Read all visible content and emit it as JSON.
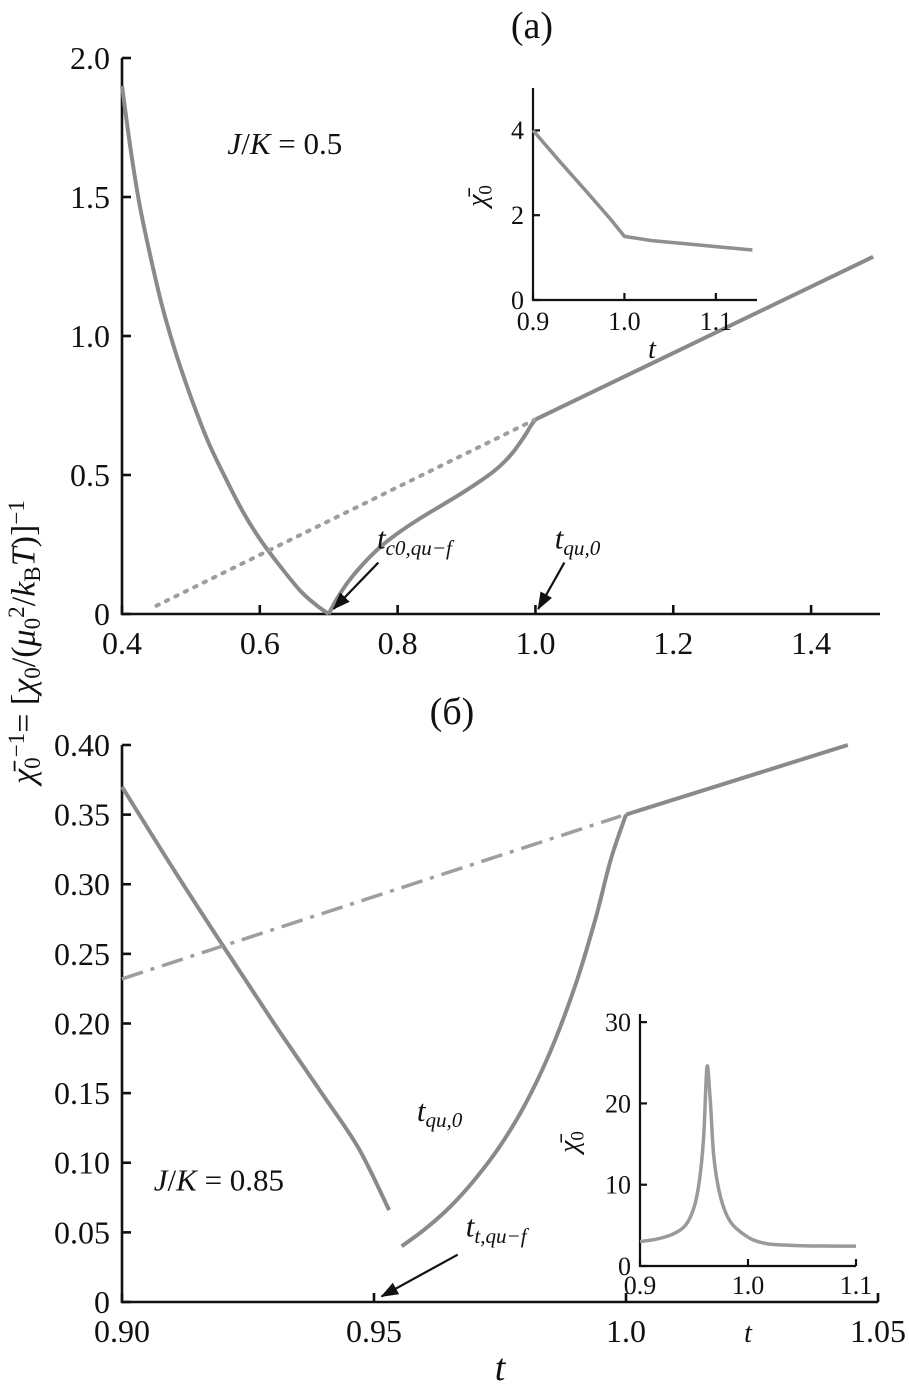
{
  "figure": {
    "shared_xlabel": "t",
    "shared_ylabel_parts": [
      [
        "i",
        "χ̄"
      ],
      [
        "sub",
        "0"
      ],
      [
        "sup",
        "−1"
      ],
      [
        "n",
        "= ["
      ],
      [
        "i",
        "χ"
      ],
      [
        "sub",
        "0"
      ],
      [
        "n",
        "/("
      ],
      [
        "i",
        "μ"
      ],
      [
        "sub",
        "0"
      ],
      [
        "sup",
        "2"
      ],
      [
        "n",
        "/"
      ],
      [
        "i",
        "k"
      ],
      [
        "sub",
        "B"
      ],
      [
        "i",
        "T"
      ],
      [
        "n",
        ")]"
      ],
      [
        "sup",
        "−1"
      ]
    ],
    "text_color": "#111111",
    "background": "#ffffff"
  },
  "chart_data": [
    {
      "type": "line",
      "panel_label": "(a)",
      "xlim": [
        0.4,
        1.5
      ],
      "ylim": [
        0,
        2.0
      ],
      "xtick_values": [
        0.4,
        0.6,
        0.8,
        1.0,
        1.2,
        1.4
      ],
      "xtick_labels": [
        "0.4",
        "0.6",
        "0.8",
        "1.0",
        "1.2",
        "1.4"
      ],
      "ytick_values": [
        0,
        0.5,
        1.0,
        1.5,
        2.0
      ],
      "ytick_labels": [
        "0",
        "0.5",
        "1.0",
        "1.5",
        "2.0"
      ],
      "grid": false,
      "series": [
        {
          "name": "ferro-descending-branch",
          "style": "solid",
          "color": "#8a8a8a",
          "width": 4,
          "points": [
            [
              0.4,
              1.9
            ],
            [
              0.412,
              1.68
            ],
            [
              0.425,
              1.48
            ],
            [
              0.44,
              1.3
            ],
            [
              0.458,
              1.11
            ],
            [
              0.478,
              0.94
            ],
            [
              0.5,
              0.78
            ],
            [
              0.525,
              0.62
            ],
            [
              0.55,
              0.49
            ],
            [
              0.575,
              0.37
            ],
            [
              0.6,
              0.27
            ],
            [
              0.63,
              0.17
            ],
            [
              0.66,
              0.08
            ],
            [
              0.683,
              0.03
            ],
            [
              0.7,
              0.0
            ]
          ]
        },
        {
          "name": "quasi-recovery-branch",
          "style": "solid",
          "color": "#8a8a8a",
          "width": 4,
          "points": [
            [
              0.7,
              0.0
            ],
            [
              0.712,
              0.055
            ],
            [
              0.728,
              0.115
            ],
            [
              0.748,
              0.175
            ],
            [
              0.772,
              0.235
            ],
            [
              0.8,
              0.29
            ],
            [
              0.83,
              0.34
            ],
            [
              0.86,
              0.385
            ],
            [
              0.89,
              0.43
            ],
            [
              0.915,
              0.47
            ],
            [
              0.938,
              0.51
            ],
            [
              0.956,
              0.55
            ],
            [
              0.97,
              0.59
            ],
            [
              0.98,
              0.625
            ],
            [
              0.988,
              0.655
            ],
            [
              0.994,
              0.68
            ],
            [
              1.0,
              0.7
            ]
          ]
        },
        {
          "name": "para-linear-branch",
          "style": "solid",
          "color": "#8a8a8a",
          "width": 4,
          "smooth": false,
          "points": [
            [
              1.0,
              0.7
            ],
            [
              1.49,
              1.285
            ]
          ]
        },
        {
          "name": "extrapolated-dotted-line",
          "style": "dotted",
          "color": "#9e9e9e",
          "width": 4,
          "smooth": false,
          "points": [
            [
              0.45,
              0.03
            ],
            [
              0.998,
              0.698
            ]
          ]
        }
      ],
      "annotations": [
        {
          "name": "annotation-t-c0-qu-f",
          "parts": [
            [
              "i",
              "t"
            ],
            [
              "subi",
              "c0,qu−f"
            ]
          ],
          "text_at": [
            0.77,
            0.235
          ],
          "anchor": "start",
          "arrow_from": [
            0.772,
            0.185
          ],
          "arrow_to": [
            0.707,
            0.018
          ]
        },
        {
          "name": "annotation-t-qu-0",
          "parts": [
            [
              "i",
              "t"
            ],
            [
              "subi",
              "qu,0"
            ]
          ],
          "text_at": [
            1.028,
            0.235
          ],
          "anchor": "start",
          "arrow_from": [
            1.042,
            0.185
          ],
          "arrow_to": [
            1.004,
            0.018
          ]
        },
        {
          "name": "parameter-label",
          "parts": [
            [
              "i",
              "J"
            ],
            [
              "n",
              "/"
            ],
            [
              "i",
              "K"
            ],
            [
              "n",
              " = 0.5"
            ]
          ],
          "text_at": [
            0.553,
            1.655
          ],
          "anchor": "start"
        }
      ],
      "inset": {
        "xlim": [
          0.9,
          1.145
        ],
        "ylim": [
          0,
          5
        ],
        "xtick_values": [
          0.9,
          1.0,
          1.1
        ],
        "xtick_labels": [
          "0.9",
          "1.0",
          "1.1"
        ],
        "ytick_values": [
          0,
          2,
          4
        ],
        "ytick_labels": [
          "0",
          "2",
          "4"
        ],
        "xlabel": "t",
        "ylabel_parts": [
          [
            "i",
            "χ̄"
          ],
          [
            "sub",
            "0"
          ]
        ],
        "series": [
          {
            "name": "inset-susceptibility-curve",
            "style": "solid",
            "color": "#8f8f8f",
            "width": 3.5,
            "smooth": false,
            "points": [
              [
                0.9,
                4.0
              ],
              [
                0.93,
                3.25
              ],
              [
                0.96,
                2.52
              ],
              [
                0.985,
                1.9
              ],
              [
                1.0,
                1.5
              ],
              [
                1.03,
                1.4
              ],
              [
                1.07,
                1.32
              ],
              [
                1.1,
                1.26
              ],
              [
                1.14,
                1.18
              ]
            ]
          }
        ]
      }
    },
    {
      "type": "line",
      "panel_label": "(б)",
      "xlim": [
        0.9,
        1.05
      ],
      "ylim": [
        0,
        0.4
      ],
      "xtick_values": [
        0.9,
        0.95,
        1.0,
        1.05
      ],
      "xtick_labels": [
        "0.90",
        "0.95",
        "1.0",
        "1.05"
      ],
      "ytick_values": [
        0,
        0.05,
        0.1,
        0.15,
        0.2,
        0.25,
        0.3,
        0.35,
        0.4
      ],
      "ytick_labels": [
        "0",
        "0.05",
        "0.10",
        "0.15",
        "0.20",
        "0.25",
        "0.30",
        "0.35",
        "0.40"
      ],
      "grid": false,
      "series": [
        {
          "name": "ferro-descending-branch",
          "style": "solid",
          "color": "#8a8a8a",
          "width": 4,
          "points": [
            [
              0.9,
              0.37
            ],
            [
              0.91,
              0.312
            ],
            [
              0.92,
              0.256
            ],
            [
              0.93,
              0.201
            ],
            [
              0.94,
              0.148
            ],
            [
              0.947,
              0.11
            ],
            [
              0.953,
              0.066
            ]
          ]
        },
        {
          "name": "quasi-rising-branch",
          "style": "solid",
          "color": "#8a8a8a",
          "width": 4,
          "points": [
            [
              0.9555,
              0.04
            ],
            [
              0.96,
              0.052
            ],
            [
              0.965,
              0.068
            ],
            [
              0.97,
              0.088
            ],
            [
              0.975,
              0.112
            ],
            [
              0.98,
              0.142
            ],
            [
              0.985,
              0.18
            ],
            [
              0.99,
              0.228
            ],
            [
              0.994,
              0.276
            ],
            [
              0.997,
              0.318
            ],
            [
              1.0,
              0.35
            ]
          ]
        },
        {
          "name": "para-linear-branch",
          "style": "solid",
          "color": "#8a8a8a",
          "width": 4,
          "smooth": false,
          "points": [
            [
              1.0,
              0.35
            ],
            [
              1.044,
              0.4
            ]
          ]
        },
        {
          "name": "extrapolated-dash-dot-line",
          "style": "dashdot",
          "color": "#9e9e9e",
          "width": 3.5,
          "smooth": false,
          "points": [
            [
              0.9,
              0.232
            ],
            [
              0.999,
              0.349
            ]
          ]
        }
      ],
      "annotations": [
        {
          "name": "annotation-t-qu-0",
          "parts": [
            [
              "i",
              "t"
            ],
            [
              "subi",
              "qu,0"
            ]
          ],
          "text_at": [
            0.9585,
            0.13
          ],
          "anchor": "start"
        },
        {
          "name": "annotation-t-t-qu-f",
          "parts": [
            [
              "i",
              "t"
            ],
            [
              "subi",
              "t,qu−f"
            ]
          ],
          "text_at": [
            0.9682,
            0.047
          ],
          "anchor": "start",
          "arrow_from": [
            0.9666,
            0.034
          ],
          "arrow_to": [
            0.9515,
            0.004
          ]
        },
        {
          "name": "parameter-label",
          "parts": [
            [
              "i",
              "J"
            ],
            [
              "n",
              "/"
            ],
            [
              "i",
              "K"
            ],
            [
              "n",
              " = 0.85"
            ]
          ],
          "text_at": [
            0.9063,
            0.08
          ],
          "anchor": "start"
        }
      ],
      "inset": {
        "xlim": [
          0.9,
          1.1
        ],
        "ylim": [
          0,
          31
        ],
        "xtick_values": [
          0.9,
          1.0,
          1.1
        ],
        "xtick_labels": [
          "0.9",
          "1.0",
          "1.1"
        ],
        "ytick_values": [
          0,
          10,
          20,
          30
        ],
        "ytick_labels": [
          "0",
          "10",
          "20",
          "30"
        ],
        "xlabel": "t",
        "ylabel_parts": [
          [
            "i",
            "χ̄"
          ],
          [
            "sub",
            "0"
          ]
        ],
        "series": [
          {
            "name": "inset-susceptibility-peak",
            "style": "solid",
            "color": "#9a9a9a",
            "width": 3.5,
            "points": [
              [
                0.9,
                3.0
              ],
              [
                0.915,
                3.3
              ],
              [
                0.93,
                3.9
              ],
              [
                0.942,
                5.0
              ],
              [
                0.95,
                7.2
              ],
              [
                0.955,
                10.5
              ],
              [
                0.959,
                16.0
              ],
              [
                0.962,
                24.5
              ],
              [
                0.965,
                20.5
              ],
              [
                0.968,
                14.0
              ],
              [
                0.972,
                10.0
              ],
              [
                0.978,
                7.0
              ],
              [
                0.985,
                5.2
              ],
              [
                0.995,
                4.0
              ],
              [
                1.005,
                3.2
              ],
              [
                1.02,
                2.7
              ],
              [
                1.05,
                2.5
              ],
              [
                1.08,
                2.45
              ],
              [
                1.1,
                2.45
              ]
            ]
          }
        ]
      }
    }
  ]
}
